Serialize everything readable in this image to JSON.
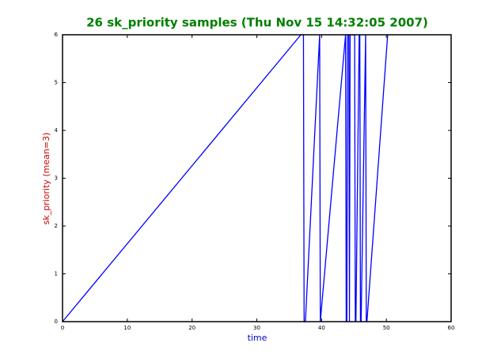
{
  "chart_data": {
    "type": "line",
    "title": "26 sk_priority samples (Thu Nov 15 14:32:05 2007)",
    "x_label": "time",
    "y_label": "sk_priority (mean=3)",
    "x": [
      0,
      36.8,
      37.2,
      37.3,
      37.5,
      39.7,
      39.8,
      43.7,
      43.8,
      43.9,
      44.0,
      44.1,
      44.2,
      44.3,
      44.4,
      45.1,
      45.2,
      45.3,
      45.8,
      45.9,
      46.0,
      46.1,
      46.8,
      46.9,
      47.0,
      50.2
    ],
    "series": [
      {
        "color": "#0000ff",
        "values": [
          0,
          6,
          6,
          0,
          0,
          6,
          0,
          6,
          0,
          0,
          6,
          6,
          6,
          0,
          6,
          6,
          0,
          0,
          6,
          6,
          0,
          0,
          6,
          0,
          0,
          6
        ]
      }
    ],
    "xlim": [
      0,
      60
    ],
    "xticks": [
      0,
      10,
      20,
      30,
      40,
      50,
      60
    ],
    "ylim": [
      0,
      6
    ],
    "yticks": [
      0,
      1,
      2,
      3,
      4,
      5,
      6
    ]
  }
}
